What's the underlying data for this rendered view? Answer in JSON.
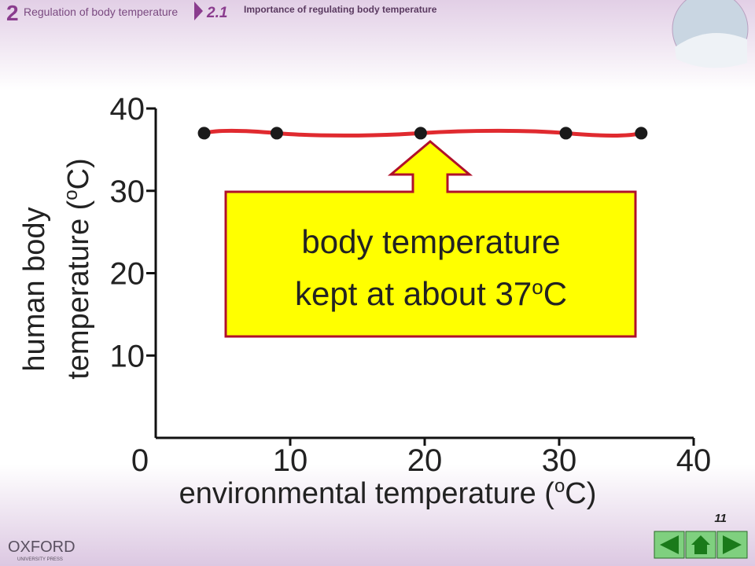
{
  "header": {
    "chapter": "2",
    "chapter_title": "Regulation of body temperature",
    "section": "2.1",
    "section_title": "Importance of regulating body temperature"
  },
  "footer": {
    "page": "11",
    "publisher": "OXFORD",
    "publisher_sub": "UNIVERSITY PRESS"
  },
  "chart_data": {
    "type": "line",
    "xlabel": [
      "environmental temperature (",
      "o",
      "C)"
    ],
    "ylabel": [
      "human body",
      [
        "temperature (",
        "o",
        "C)"
      ]
    ],
    "x": [
      3.6,
      9,
      19.7,
      30.5,
      36.1
    ],
    "series": [
      {
        "color": "#e02a2f",
        "marker_color": "#1a1a1a",
        "values": [
          37,
          37,
          37,
          37,
          37
        ]
      }
    ],
    "xlim": [
      0,
      40
    ],
    "xticks": [
      0,
      10,
      20,
      30,
      40
    ],
    "ylim": [
      0,
      40
    ],
    "yticks": [
      10,
      20,
      30,
      40
    ],
    "annotation": {
      "line1": "body temperature",
      "line2": [
        "kept at about 37",
        "o",
        "C"
      ]
    }
  }
}
